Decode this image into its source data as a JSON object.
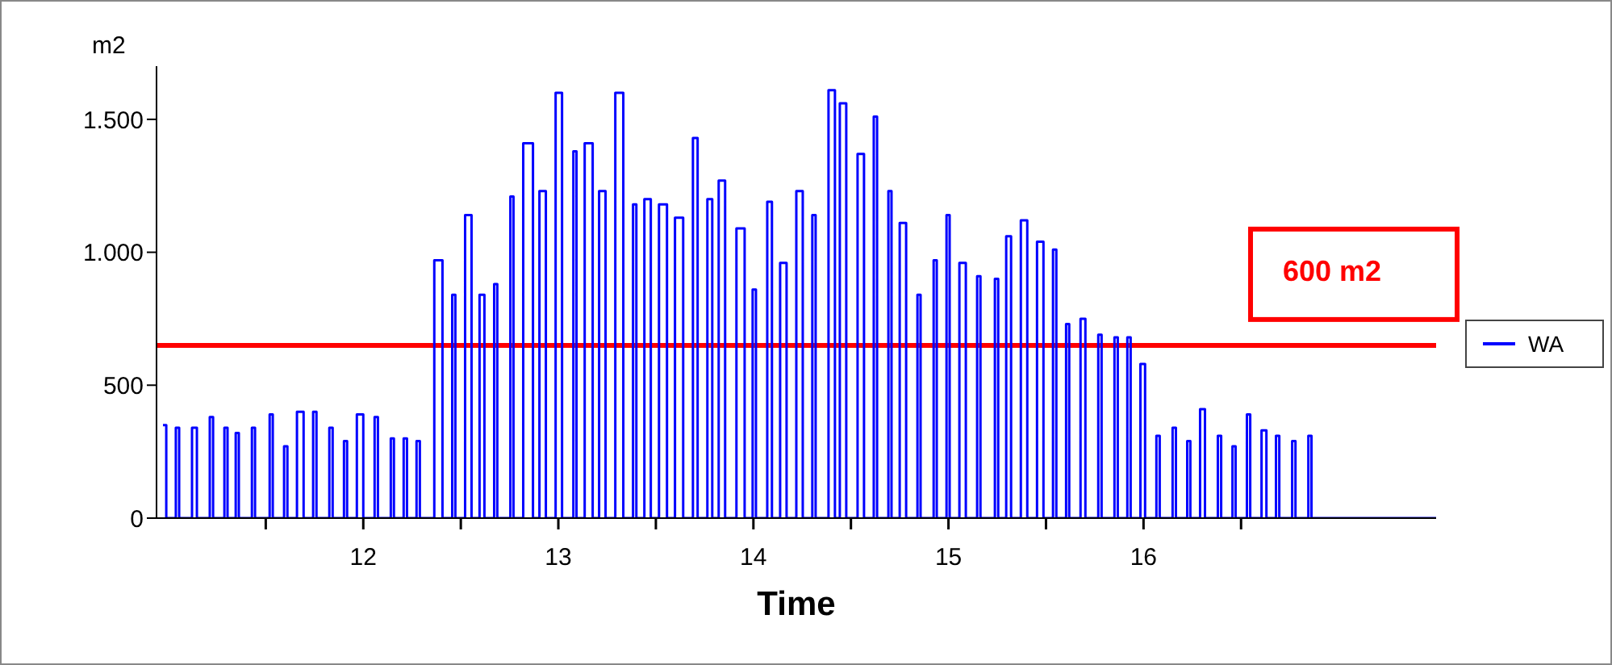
{
  "chart_data": {
    "type": "step",
    "xlabel": "Time",
    "ylabel": "m2",
    "xlim": [
      10.94,
      17.5
    ],
    "xticks": [
      {
        "value": 11.5,
        "label": null
      },
      12,
      {
        "value": 12.5,
        "label": null
      },
      13,
      {
        "value": 13.5,
        "label": null
      },
      14,
      {
        "value": 14.5,
        "label": null
      },
      15,
      {
        "value": 15.5,
        "label": null
      },
      16,
      {
        "value": 16.5,
        "label": null
      }
    ],
    "ylim": [
      0,
      1700
    ],
    "yticks": [
      0,
      500,
      {
        "value": 1000,
        "label": "1.000"
      },
      {
        "value": 1500,
        "label": "1.500"
      }
    ],
    "legend": "right",
    "marker": "none",
    "line_style": "solid",
    "ref_lines": [
      {
        "axis": "y",
        "value": 650,
        "label": "600 m2",
        "color": "#ff0000"
      }
    ],
    "series": [
      {
        "name": "WA",
        "color": "#0000ff",
        "x": [
          10.973,
          10.99,
          11.039,
          11.056,
          11.122,
          11.147,
          11.213,
          11.23,
          11.288,
          11.304,
          11.346,
          11.362,
          11.429,
          11.445,
          11.52,
          11.536,
          11.594,
          11.611,
          11.66,
          11.694,
          11.743,
          11.76,
          11.826,
          11.843,
          11.901,
          11.917,
          11.967,
          12.0,
          12.058,
          12.075,
          12.141,
          12.157,
          12.207,
          12.224,
          12.273,
          12.29,
          12.364,
          12.406,
          12.456,
          12.472,
          12.522,
          12.555,
          12.596,
          12.621,
          12.671,
          12.687,
          12.754,
          12.77,
          12.82,
          12.87,
          12.903,
          12.936,
          12.986,
          13.019,
          13.077,
          13.093,
          13.135,
          13.176,
          13.209,
          13.242,
          13.292,
          13.333,
          13.383,
          13.4,
          13.441,
          13.474,
          13.516,
          13.557,
          13.598,
          13.64,
          13.69,
          13.714,
          13.764,
          13.789,
          13.822,
          13.855,
          13.913,
          13.955,
          13.996,
          14.013,
          14.071,
          14.095,
          14.137,
          14.17,
          14.22,
          14.253,
          14.302,
          14.319,
          14.385,
          14.418,
          14.443,
          14.476,
          14.534,
          14.567,
          14.617,
          14.634,
          14.692,
          14.708,
          14.75,
          14.783,
          14.841,
          14.857,
          14.924,
          14.94,
          14.99,
          15.006,
          15.056,
          15.089,
          15.147,
          15.164,
          15.238,
          15.255,
          15.296,
          15.321,
          15.371,
          15.404,
          15.454,
          15.487,
          15.536,
          15.553,
          15.603,
          15.619,
          15.677,
          15.702,
          15.768,
          15.785,
          15.851,
          15.868,
          15.917,
          15.934,
          15.984,
          16.008,
          16.066,
          16.083,
          16.149,
          16.166,
          16.224,
          16.24,
          16.29,
          16.315,
          16.381,
          16.398,
          16.456,
          16.472,
          16.53,
          16.547,
          16.605,
          16.63,
          16.679,
          16.696,
          16.762,
          16.779,
          16.845,
          16.861,
          17.5
        ],
        "values": [
          350,
          0,
          340,
          0,
          340,
          0,
          380,
          0,
          340,
          0,
          320,
          0,
          340,
          0,
          390,
          0,
          270,
          0,
          400,
          0,
          400,
          0,
          340,
          0,
          290,
          0,
          390,
          0,
          380,
          0,
          300,
          0,
          300,
          0,
          290,
          0,
          970,
          0,
          840,
          0,
          1140,
          0,
          840,
          0,
          880,
          0,
          1210,
          0,
          1410,
          0,
          1230,
          0,
          1600,
          0,
          1380,
          0,
          1410,
          0,
          1230,
          0,
          1600,
          0,
          1180,
          0,
          1200,
          0,
          1180,
          0,
          1130,
          0,
          1430,
          0,
          1200,
          0,
          1270,
          0,
          1090,
          0,
          860,
          0,
          1190,
          0,
          960,
          0,
          1230,
          0,
          1140,
          0,
          1610,
          0,
          1560,
          0,
          1370,
          0,
          1510,
          0,
          1230,
          0,
          1110,
          0,
          840,
          0,
          970,
          0,
          1140,
          0,
          960,
          0,
          910,
          0,
          900,
          0,
          1060,
          0,
          1120,
          0,
          1040,
          0,
          1010,
          0,
          730,
          0,
          750,
          0,
          690,
          0,
          680,
          0,
          680,
          0,
          580,
          0,
          310,
          0,
          340,
          0,
          290,
          0,
          410,
          0,
          310,
          0,
          270,
          0,
          390,
          0,
          330,
          0,
          310,
          0,
          290,
          0,
          310,
          0,
          0
        ]
      }
    ]
  }
}
